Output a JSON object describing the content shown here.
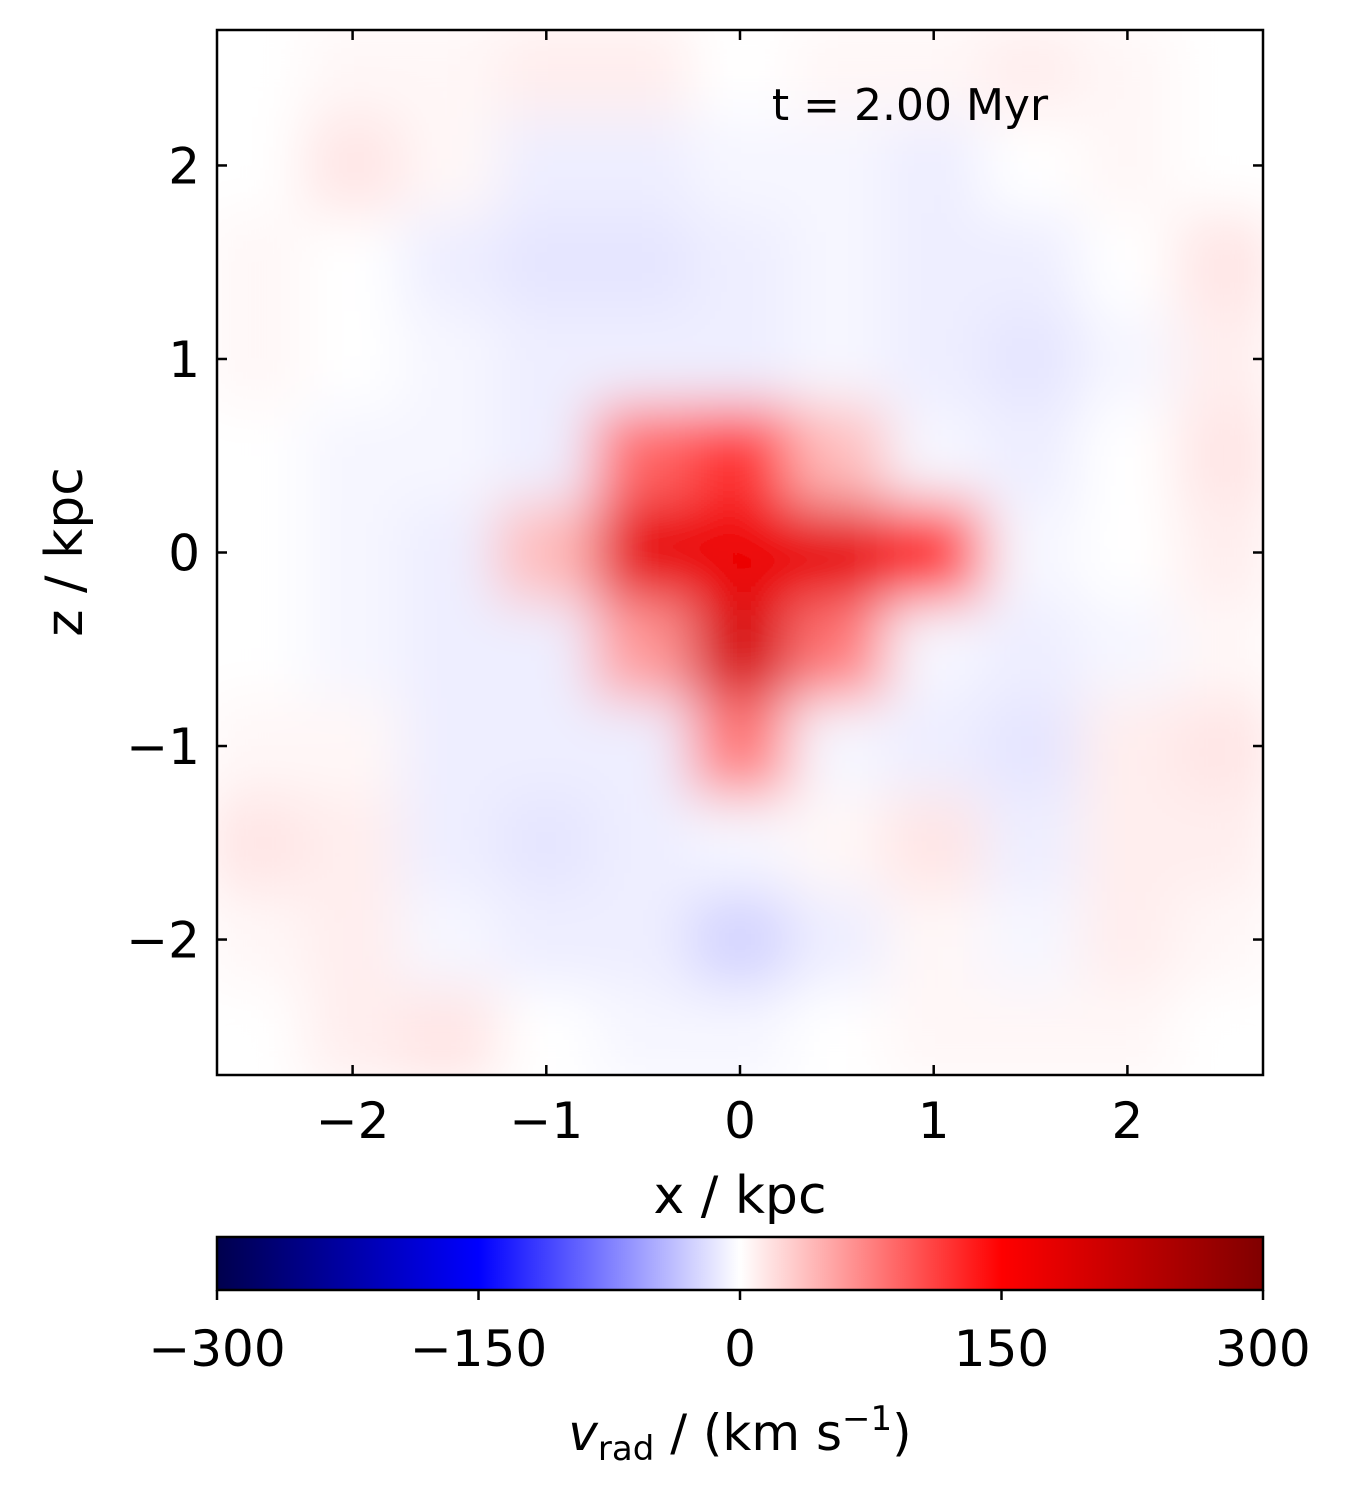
{
  "chart_data": {
    "type": "heatmap",
    "annotation": "t = 2.00 Myr",
    "xlabel": "x / kpc",
    "ylabel": "z / kpc",
    "x": [
      -2.5,
      -2.0,
      -1.5,
      -1.0,
      -0.5,
      0,
      0.5,
      1.0,
      1.5,
      2.0,
      2.5
    ],
    "y": [
      2.5,
      2.0,
      1.5,
      1.0,
      0.5,
      0,
      -0.5,
      -1.0,
      -1.5,
      -2.0,
      -2.5
    ],
    "values": [
      [
        0,
        5,
        5,
        10,
        10,
        0,
        5,
        5,
        10,
        5,
        0
      ],
      [
        0,
        15,
        5,
        -10,
        -10,
        -5,
        -5,
        -10,
        0,
        5,
        0
      ],
      [
        5,
        0,
        -10,
        -15,
        -15,
        -10,
        -5,
        -10,
        -10,
        0,
        15
      ],
      [
        5,
        0,
        -5,
        -10,
        -10,
        -10,
        -5,
        -10,
        -15,
        -5,
        10
      ],
      [
        0,
        -5,
        -5,
        -10,
        90,
        120,
        40,
        -5,
        -10,
        0,
        15
      ],
      [
        0,
        -5,
        -10,
        40,
        180,
        170,
        180,
        130,
        -5,
        0,
        10
      ],
      [
        0,
        -5,
        -10,
        -10,
        60,
        200,
        80,
        -5,
        -10,
        -5,
        5
      ],
      [
        5,
        5,
        -10,
        -10,
        -10,
        80,
        -5,
        -10,
        -15,
        10,
        15
      ],
      [
        15,
        10,
        -10,
        -15,
        -10,
        -5,
        5,
        15,
        -10,
        10,
        10
      ],
      [
        5,
        10,
        -5,
        -10,
        -10,
        -25,
        -10,
        5,
        -5,
        10,
        5
      ],
      [
        0,
        10,
        15,
        0,
        -5,
        -5,
        0,
        5,
        5,
        5,
        0
      ]
    ],
    "xlim": [
      -2.7,
      2.7
    ],
    "ylim": [
      -2.7,
      2.7
    ],
    "xticks": [
      {
        "value": -2,
        "label": "−2"
      },
      {
        "value": -1,
        "label": "−1"
      },
      0,
      1,
      2
    ],
    "yticks": [
      {
        "value": -2,
        "label": "−2"
      },
      {
        "value": -1,
        "label": "−1"
      },
      0,
      1,
      2
    ],
    "colormap": [
      "#00004d",
      "#0000ff",
      "#ffffff",
      "#ff0000",
      "#800000"
    ],
    "clim": [
      -300,
      300
    ],
    "cticks": [
      {
        "value": -300,
        "label": "−300"
      },
      {
        "value": -150,
        "label": "−150"
      },
      0,
      150,
      300
    ],
    "colorbar_label": {
      "main": "v",
      "sub": "rad",
      "mid": " / (km s",
      "sup": "−1",
      "end": ")"
    }
  }
}
